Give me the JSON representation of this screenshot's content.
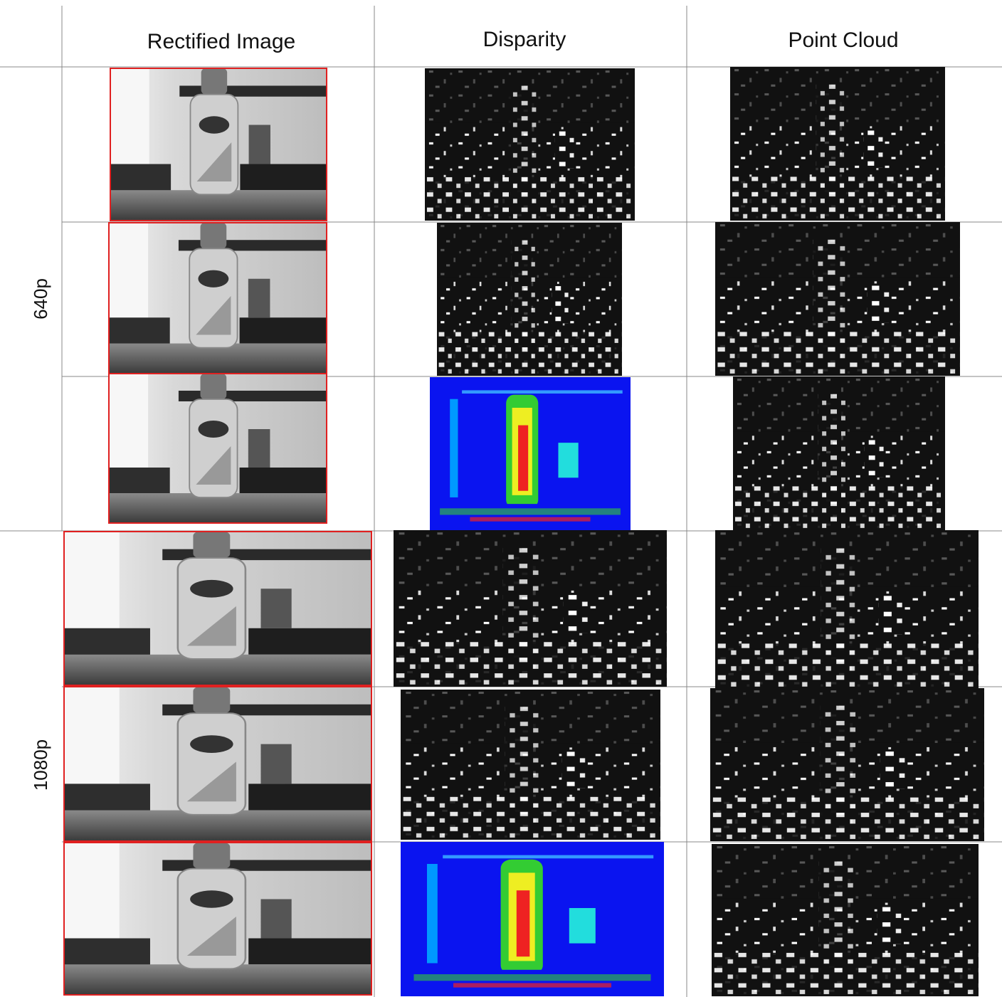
{
  "header": {
    "columns": [
      "Rectified Image",
      "Disparity",
      "Point Cloud"
    ]
  },
  "row_groups": [
    {
      "label": "640p"
    },
    {
      "label": "1080p"
    }
  ]
}
